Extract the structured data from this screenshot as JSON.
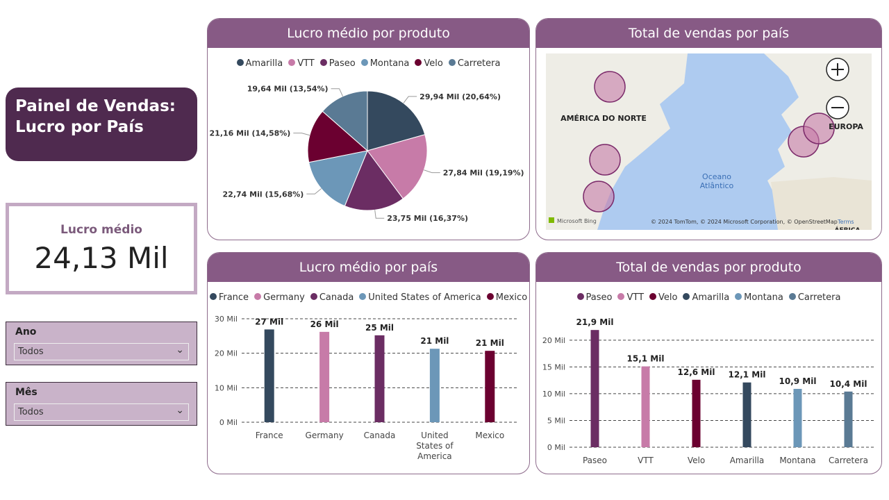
{
  "header": {
    "title_lines": [
      "Painel de Vendas:",
      "Lucro por País"
    ]
  },
  "kpi": {
    "label": "Lucro médio",
    "value": "24,13 Mil"
  },
  "slicers": [
    {
      "label": "Ano",
      "value": "Todos"
    },
    {
      "label": "Mês",
      "value": "Todos"
    }
  ],
  "map": {
    "title": "Total de vendas por país",
    "region_labels": [
      "AMÉRICA DO NORTE",
      "EUROPA",
      "ÁFRICA"
    ],
    "ocean_label": [
      "Oceano",
      "Atlântico"
    ],
    "provider": "Microsoft Bing",
    "attribution": "© 2024 TomTom, © 2024 Microsoft Corporation, © OpenStreetMap",
    "terms": "Terms"
  },
  "chart_data": [
    {
      "type": "pie",
      "title": "Lucro médio por produto",
      "categories": [
        "Amarilla",
        "VTT",
        "Paseo",
        "Montana",
        "Velo",
        "Carretera"
      ],
      "values": [
        29.94,
        27.84,
        23.75,
        22.74,
        21.16,
        19.64
      ],
      "value_labels": [
        "29,94 Mil (20,64%)",
        "27,84 Mil (19,19%)",
        "23,75 Mil (16,37%)",
        "22,74 Mil (15,68%)",
        "21,16 Mil (14,58%)",
        "19,64 Mil (13,54%)"
      ],
      "colors": [
        "#34495e",
        "#c77ba8",
        "#6b2d63",
        "#6c97b8",
        "#6b0030",
        "#5a7a94"
      ]
    },
    {
      "type": "bar",
      "title": "Lucro médio por país",
      "categories": [
        "France",
        "Germany",
        "Canada",
        "United States of America",
        "Mexico"
      ],
      "values": [
        26.9,
        26.2,
        25.2,
        21.3,
        20.7
      ],
      "value_labels": [
        "27 Mil",
        "26 Mil",
        "25 Mil",
        "21 Mil",
        "21 Mil"
      ],
      "colors": [
        "#34495e",
        "#c77ba8",
        "#6b2d63",
        "#6c97b8",
        "#6b0030"
      ],
      "ylim": [
        0,
        30
      ],
      "yticks": [
        {
          "value": 0,
          "label": "0 Mil"
        },
        {
          "value": 10,
          "label": "10 Mil"
        },
        {
          "value": 20,
          "label": "20 Mil"
        },
        {
          "value": 30,
          "label": "30 Mil"
        }
      ],
      "grid": true
    },
    {
      "type": "bar",
      "title": "Total de vendas por produto",
      "categories": [
        "Paseo",
        "VTT",
        "Velo",
        "Amarilla",
        "Montana",
        "Carretera"
      ],
      "values": [
        21.9,
        15.1,
        12.6,
        12.1,
        10.9,
        10.4
      ],
      "value_labels": [
        "21,9 Mil",
        "15,1 Mil",
        "12,6 Mil",
        "12,1 Mil",
        "10,9 Mil",
        "10,4 Mil"
      ],
      "colors": [
        "#6b2d63",
        "#c77ba8",
        "#6b0030",
        "#34495e",
        "#6c97b8",
        "#5a7a94"
      ],
      "ylim": [
        0,
        24
      ],
      "yticks": [
        {
          "value": 0,
          "label": "0 Mil"
        },
        {
          "value": 5,
          "label": "5 Mil"
        },
        {
          "value": 10,
          "label": "10 Mil"
        },
        {
          "value": 15,
          "label": "15 Mil"
        },
        {
          "value": 20,
          "label": "20 Mil"
        }
      ],
      "grid": true
    }
  ]
}
